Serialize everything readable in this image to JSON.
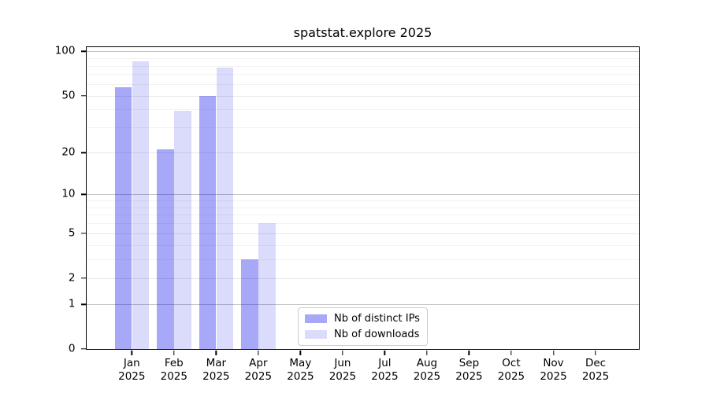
{
  "chart_data": {
    "type": "bar",
    "title": "spatstat.explore 2025",
    "categories": [
      "Jan 2025",
      "Feb 2025",
      "Mar 2025",
      "Apr 2025",
      "May 2025",
      "Jun 2025",
      "Jul 2025",
      "Aug 2025",
      "Sep 2025",
      "Oct 2025",
      "Nov 2025",
      "Dec 2025"
    ],
    "series": [
      {
        "name": "Nb of distinct IPs",
        "color": "#0000eb57",
        "values": [
          57,
          21,
          50,
          3,
          0,
          0,
          0,
          0,
          0,
          0,
          0,
          0
        ]
      },
      {
        "name": "Nb of downloads",
        "color": "#0000eb24",
        "values": [
          86,
          39,
          78,
          6,
          0,
          0,
          0,
          0,
          0,
          0,
          0,
          0
        ]
      }
    ],
    "yscale": "log1p",
    "ylim": [
      0,
      107
    ],
    "y_major_ticks": [
      0,
      1,
      2,
      5,
      10,
      20,
      50,
      100
    ],
    "y_minor_ticks": [
      3,
      4,
      6,
      7,
      8,
      9,
      30,
      40,
      60,
      70,
      80,
      90
    ],
    "grid": "horizontal",
    "legend_position": "inside-bottom-center"
  }
}
